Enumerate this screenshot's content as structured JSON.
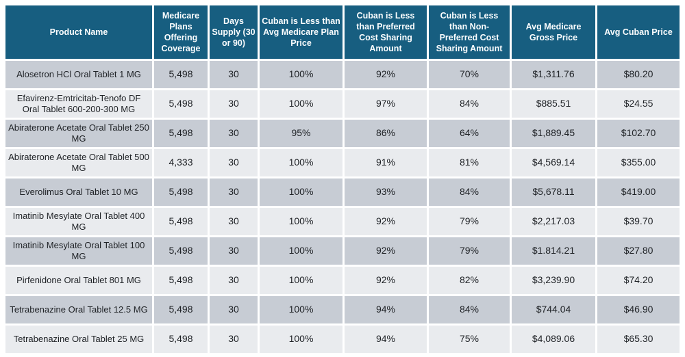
{
  "colors": {
    "header_bg": "#175E80",
    "header_text": "#FBFDFE",
    "row_odd_bg": "#C7CCD4",
    "row_even_bg": "#E9EBEE",
    "body_text": "#202327",
    "grid_gap": "#FFFFFF"
  },
  "chart_data": {
    "type": "table",
    "columns": [
      "Product Name",
      "Medicare Plans Offering Coverage",
      "Days Supply (30 or 90)",
      "Cuban is Less than Avg Medicare Plan Price",
      "Cuban is Less than Preferred Cost Sharing Amount",
      "Cuban is Less than Non-Preferred Cost Sharing Amount",
      "Avg Medicare Gross Price",
      "Avg Cuban Price"
    ],
    "column_keys": [
      "product-name",
      "medicare-plans-offering-coverage",
      "days-supply",
      "cuban-less-than-avg-medicare-plan-price",
      "cuban-less-than-preferred-cost-sharing",
      "cuban-less-than-non-preferred-cost-sharing",
      "avg-medicare-gross-price",
      "avg-cuban-price"
    ],
    "rows": [
      [
        "Alosetron HCl Oral Tablet 1 MG",
        "5,498",
        "30",
        "100%",
        "92%",
        "70%",
        "$1,311.76",
        "$80.20"
      ],
      [
        "Efavirenz-Emtricitab-Tenofo DF Oral Tablet 600-200-300 MG",
        "5,498",
        "30",
        "100%",
        "97%",
        "84%",
        "$885.51",
        "$24.55"
      ],
      [
        "Abiraterone Acetate Oral Tablet 250 MG",
        "5,498",
        "30",
        "95%",
        "86%",
        "64%",
        "$1,889.45",
        "$102.70"
      ],
      [
        "Abiraterone Acetate Oral Tablet 500 MG",
        "4,333",
        "30",
        "100%",
        "91%",
        "81%",
        "$4,569.14",
        "$355.00"
      ],
      [
        "Everolimus Oral Tablet 10 MG",
        "5,498",
        "30",
        "100%",
        "93%",
        "84%",
        "$5,678.11",
        "$419.00"
      ],
      [
        "Imatinib Mesylate Oral Tablet 400 MG",
        "5,498",
        "30",
        "100%",
        "92%",
        "79%",
        "$2,217.03",
        "$39.70"
      ],
      [
        "Imatinib Mesylate Oral Tablet 100 MG",
        "5,498",
        "30",
        "100%",
        "92%",
        "79%",
        "$1.814.21",
        "$27.80"
      ],
      [
        "Pirfenidone Oral Tablet 801 MG",
        "5,498",
        "30",
        "100%",
        "92%",
        "82%",
        "$3,239.90",
        "$74.20"
      ],
      [
        "Tetrabenazine Oral Tablet 12.5 MG",
        "5,498",
        "30",
        "100%",
        "94%",
        "84%",
        "$744.04",
        "$46.90"
      ],
      [
        "Tetrabenazine Oral Tablet 25 MG",
        "5,498",
        "30",
        "100%",
        "94%",
        "75%",
        "$4,089.06",
        "$65.30"
      ]
    ]
  }
}
